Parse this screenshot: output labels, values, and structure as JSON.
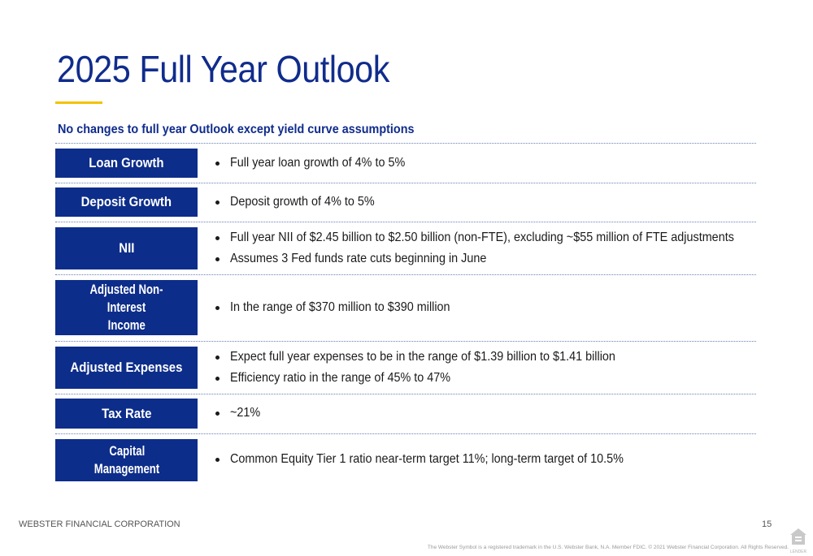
{
  "title": "2025 Full Year Outlook",
  "subtitle": "No changes to full year Outlook except yield curve assumptions",
  "rows": [
    {
      "label": [
        "Loan Growth"
      ],
      "bullets": [
        "Full year loan growth of 4% to 5%"
      ]
    },
    {
      "label": [
        "Deposit Growth"
      ],
      "bullets": [
        "Deposit growth of 4% to 5%"
      ]
    },
    {
      "label": [
        "NII"
      ],
      "bullets": [
        "Full year NII of $2.45 billion to $2.50 billion (non-FTE), excluding ~$55 million of FTE adjustments",
        "Assumes 3 Fed funds rate cuts beginning in June"
      ]
    },
    {
      "label": [
        "Adjusted Non-Interest",
        "Income"
      ],
      "bullets": [
        "In the range of $370 million to $390 million"
      ]
    },
    {
      "label": [
        "Adjusted Expenses"
      ],
      "bullets": [
        "Expect full year expenses to be in the range of $1.39 billion to $1.41 billion",
        "Efficiency ratio in the range of 45% to 47%"
      ]
    },
    {
      "label": [
        "Tax Rate"
      ],
      "bullets": [
        "~21%"
      ]
    },
    {
      "label": [
        "Capital",
        "Management"
      ],
      "bullets": [
        "Common Equity Tier 1 ratio near-term target 11%; long-term target of 10.5%"
      ]
    }
  ],
  "footer": {
    "company": "WEBSTER FINANCIAL CORPORATION",
    "page_number": "15",
    "disclaimer": "The Webster Symbol is a registered trademark in the U.S. Webster Bank, N.A. Member FDIC. © 2021 Webster Financial Corporation. All Rights Reserved.",
    "lender_icon": "equal-housing-lender-icon",
    "lender_text": "LENDER"
  },
  "colors": {
    "brand_blue": "#0d2d8a",
    "title_blue": "#102c8c",
    "accent_yellow": "#f2c200"
  }
}
